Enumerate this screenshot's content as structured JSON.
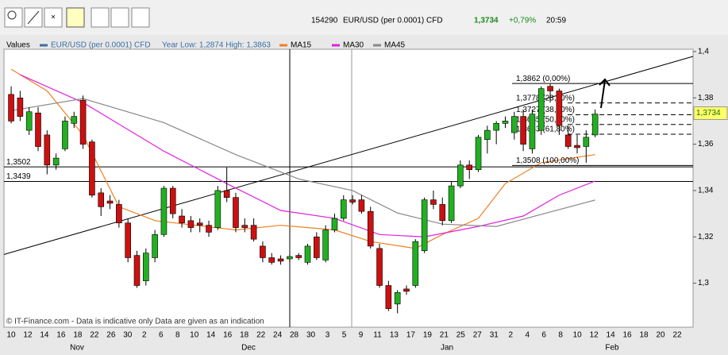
{
  "toolbar": {
    "id": "154290",
    "instrument": "EUR/USD (per 0.0001) CFD",
    "price": "1,3734",
    "change": "+0,79%",
    "time": "20:59"
  },
  "chart_data": {
    "type": "candlestick",
    "legend_title": "Values",
    "name": "EUR/USD (per 0.0001) CFD",
    "color": "#3a6ea5",
    "year_range": "Year Low: 1,2874 High: 1,3863",
    "up_color": "#22b022",
    "down_color": "#cc1010",
    "xlim": [
      -0.8,
      75.9
    ],
    "ylim": [
      1.281,
      1.401
    ],
    "yticks": [
      {
        "value": 1.4,
        "label": "1,4"
      },
      {
        "value": 1.38,
        "label": "1,38"
      },
      {
        "value": 1.36,
        "label": "1,36"
      },
      {
        "value": 1.34,
        "label": "1,34"
      },
      {
        "value": 1.32,
        "label": "1,32"
      },
      {
        "value": 1.3,
        "label": "1,3"
      }
    ],
    "day_labels": [
      "10",
      "12",
      "14",
      "16",
      "18",
      "22",
      "26",
      "30",
      "2",
      "6",
      "8",
      "10",
      "14",
      "16",
      "18",
      "22",
      "24",
      "28",
      "30",
      "3",
      "5",
      "9",
      "11",
      "13",
      "17",
      "19",
      "21",
      "25",
      "27",
      "31",
      "2",
      "4",
      "6",
      "8",
      "10",
      "12",
      "14",
      "16",
      "18",
      "20",
      "22"
    ],
    "month_labels": [
      "Nov",
      "Dec",
      "Jan",
      "Feb"
    ],
    "candles": [
      [
        1.3815,
        1.385,
        1.369,
        1.37
      ],
      [
        1.38,
        1.383,
        1.37,
        1.372
      ],
      [
        1.366,
        1.376,
        1.364,
        1.374
      ],
      [
        1.3735,
        1.376,
        1.357,
        1.359
      ],
      [
        1.364,
        1.366,
        1.347,
        1.351
      ],
      [
        1.351,
        1.356,
        1.349,
        1.354
      ],
      [
        1.358,
        1.372,
        1.357,
        1.37
      ],
      [
        1.369,
        1.374,
        1.367,
        1.372
      ],
      [
        1.379,
        1.381,
        1.358,
        1.36
      ],
      [
        1.361,
        1.362,
        1.337,
        1.338
      ],
      [
        1.339,
        1.341,
        1.329,
        1.333
      ],
      [
        1.3355,
        1.338,
        1.332,
        1.3345
      ],
      [
        1.334,
        1.336,
        1.324,
        1.326
      ],
      [
        1.326,
        1.328,
        1.309,
        1.311
      ],
      [
        1.312,
        1.314,
        1.298,
        1.299
      ],
      [
        1.301,
        1.315,
        1.299,
        1.313
      ],
      [
        1.311,
        1.323,
        1.309,
        1.321
      ],
      [
        1.321,
        1.342,
        1.32,
        1.341
      ],
      [
        1.341,
        1.342,
        1.328,
        1.33
      ],
      [
        1.329,
        1.332,
        1.324,
        1.326
      ],
      [
        1.327,
        1.329,
        1.322,
        1.324
      ],
      [
        1.326,
        1.328,
        1.322,
        1.325
      ],
      [
        1.325,
        1.327,
        1.32,
        1.322
      ],
      [
        1.324,
        1.342,
        1.323,
        1.34
      ],
      [
        1.34,
        1.35,
        1.335,
        1.337
      ],
      [
        1.337,
        1.339,
        1.322,
        1.324
      ],
      [
        1.325,
        1.328,
        1.322,
        1.324
      ],
      [
        1.325,
        1.328,
        1.318,
        1.319
      ],
      [
        1.316,
        1.318,
        1.309,
        1.311
      ],
      [
        1.311,
        1.313,
        1.308,
        1.309
      ],
      [
        1.3105,
        1.312,
        1.308,
        1.3095
      ],
      [
        1.3105,
        1.3125,
        1.309,
        1.3115
      ],
      [
        1.312,
        1.313,
        1.31,
        1.311
      ],
      [
        1.309,
        1.317,
        1.308,
        1.316
      ],
      [
        1.32,
        1.322,
        1.31,
        1.311
      ],
      [
        1.31,
        1.325,
        1.309,
        1.323
      ],
      [
        1.323,
        1.33,
        1.322,
        1.328
      ],
      [
        1.328,
        1.338,
        1.327,
        1.336
      ],
      [
        1.336,
        1.338,
        1.334,
        1.335
      ],
      [
        1.336,
        1.338,
        1.33,
        1.331
      ],
      [
        1.331,
        1.333,
        1.315,
        1.316
      ],
      [
        1.315,
        1.317,
        1.298,
        1.299
      ],
      [
        1.299,
        1.301,
        1.288,
        1.289
      ],
      [
        1.291,
        1.297,
        1.287,
        1.296
      ],
      [
        1.2975,
        1.299,
        1.295,
        1.2965
      ],
      [
        1.299,
        1.319,
        1.298,
        1.318
      ],
      [
        1.314,
        1.337,
        1.313,
        1.336
      ],
      [
        1.336,
        1.34,
        1.332,
        1.334
      ],
      [
        1.334,
        1.337,
        1.325,
        1.327
      ],
      [
        1.327,
        1.344,
        1.326,
        1.342
      ],
      [
        1.342,
        1.353,
        1.341,
        1.351
      ],
      [
        1.351,
        1.353,
        1.345,
        1.349
      ],
      [
        1.349,
        1.364,
        1.348,
        1.363
      ],
      [
        1.362,
        1.368,
        1.356,
        1.366
      ],
      [
        1.366,
        1.37,
        1.36,
        1.369
      ],
      [
        1.369,
        1.372,
        1.367,
        1.37
      ],
      [
        1.365,
        1.374,
        1.362,
        1.372
      ],
      [
        1.372,
        1.375,
        1.357,
        1.36
      ],
      [
        1.358,
        1.375,
        1.356,
        1.373
      ],
      [
        1.366,
        1.385,
        1.364,
        1.384
      ],
      [
        1.385,
        1.386,
        1.378,
        1.383
      ],
      [
        1.383,
        1.384,
        1.364,
        1.368
      ],
      [
        1.364,
        1.368,
        1.358,
        1.359
      ],
      [
        1.3595,
        1.364,
        1.356,
        1.3585
      ],
      [
        1.359,
        1.366,
        1.352,
        1.363
      ],
      [
        1.364,
        1.375,
        1.363,
        1.373
      ]
    ],
    "lines": [
      {
        "name": "MA15",
        "color": "#f08020",
        "x": [
          0,
          4,
          8,
          12,
          16,
          25,
          30,
          36,
          40,
          45,
          48,
          52,
          55,
          59,
          65
        ],
        "values": [
          1.3924,
          1.383,
          1.364,
          1.333,
          1.327,
          1.323,
          1.325,
          1.323,
          1.318,
          1.315,
          1.321,
          1.328,
          1.343,
          1.352,
          1.3555
        ]
      },
      {
        "name": "MA30",
        "color": "#e020e0",
        "x": [
          1,
          8,
          17,
          24,
          30,
          36,
          41,
          46,
          52,
          57,
          61,
          65
        ],
        "values": [
          1.39,
          1.378,
          1.357,
          1.343,
          1.3314,
          1.328,
          1.321,
          1.32,
          1.3245,
          1.329,
          1.338,
          1.3441
        ]
      },
      {
        "name": "MA45",
        "color": "#888888",
        "x": [
          0,
          8,
          17,
          25,
          32,
          38,
          43,
          48,
          54,
          59,
          65
        ],
        "values": [
          1.3745,
          1.3797,
          1.3693,
          1.3555,
          1.345,
          1.34,
          1.3303,
          1.3255,
          1.3245,
          1.3297,
          1.3359
        ]
      }
    ],
    "trendline": {
      "x": [
        -0.8,
        75.9
      ],
      "values": [
        1.3124,
        1.3979
      ]
    },
    "levels": [
      {
        "value": 1.3502,
        "label": "1,3502"
      },
      {
        "value": 1.3439,
        "label": "1,3439"
      }
    ],
    "fib_levels": [
      {
        "value": 1.3862,
        "label": "1,3862 (0,00%)"
      },
      {
        "value": 1.3778,
        "label": "1,3778 (23,60%)"
      },
      {
        "value": 1.3727,
        "label": "1,3727 (38,20%)"
      },
      {
        "value": 1.3685,
        "label": "1,3685 (50,00%)"
      },
      {
        "value": 1.3643,
        "label": "1,3643 (61,80%)"
      },
      {
        "value": 1.3508,
        "label": "1,3508 (100,00%)"
      }
    ],
    "last": {
      "value": 1.3734,
      "label": "1,3734"
    },
    "footer": "© IT-Finance.com - Data is indicative only Data are given as an indication"
  }
}
